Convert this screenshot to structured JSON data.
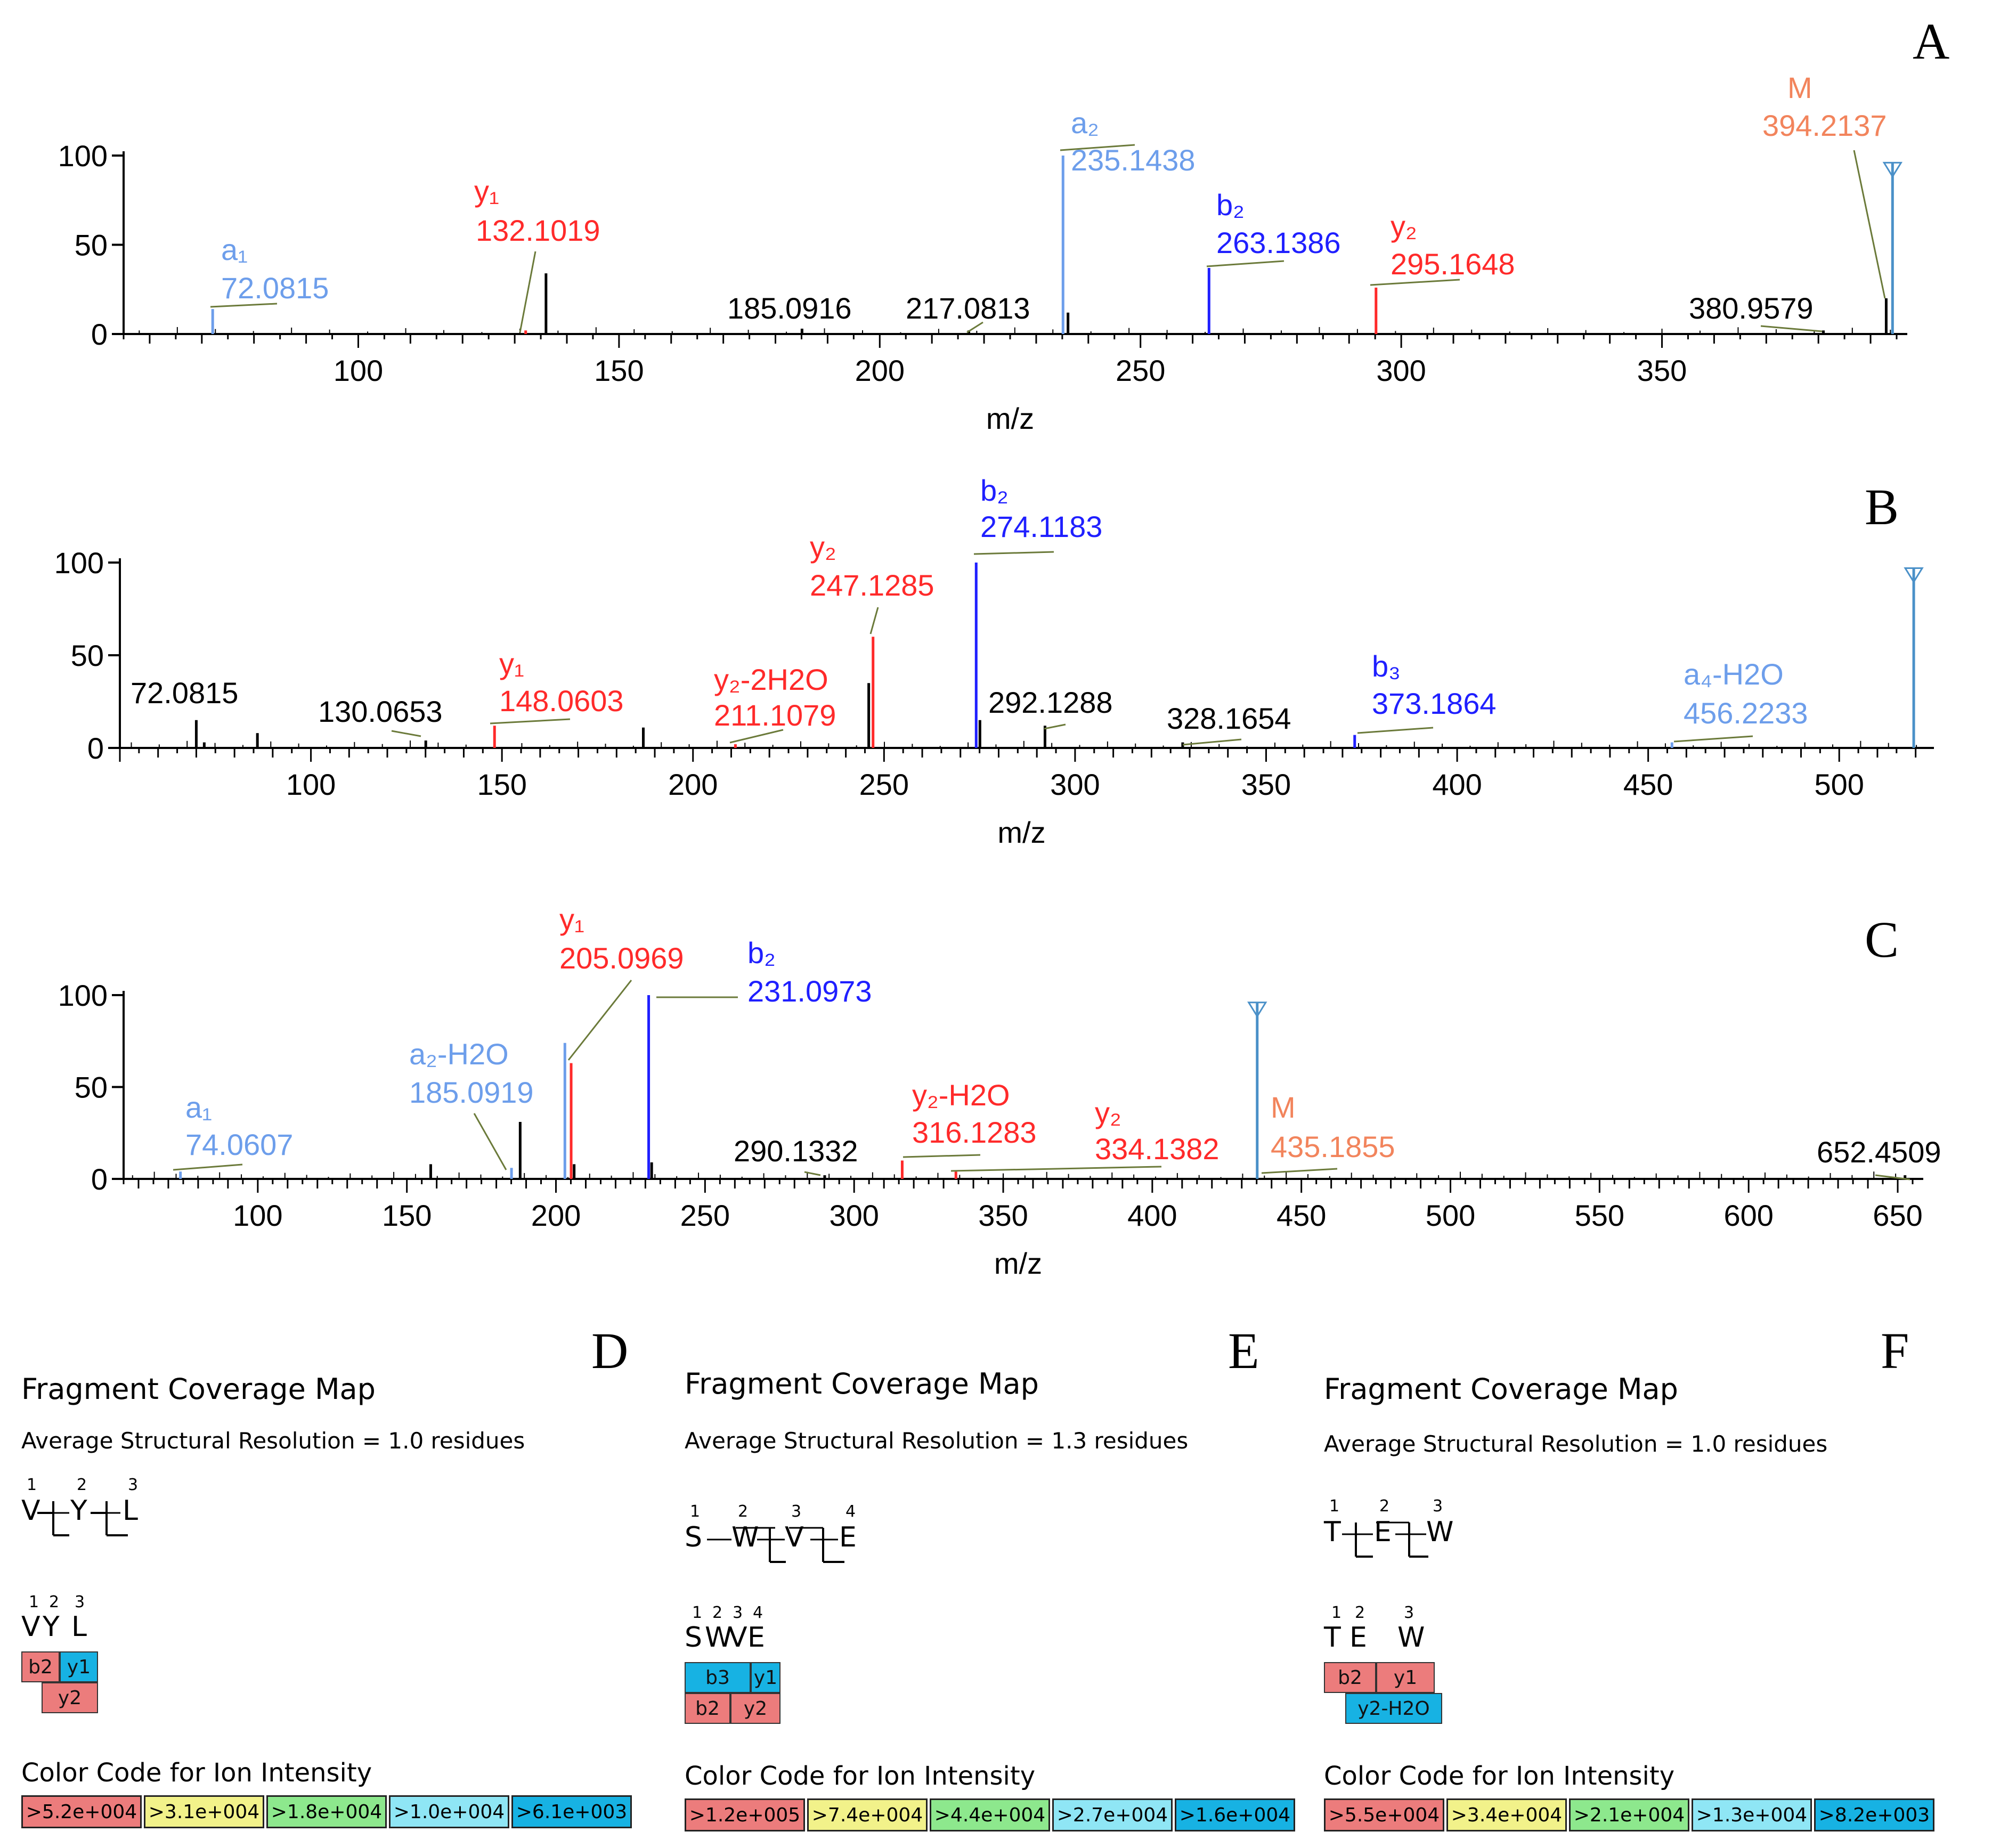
{
  "chart_data": [
    {
      "type": "bar",
      "panel": "A",
      "xlabel": "m/z",
      "xlim": [
        55,
        395
      ],
      "ylim": [
        0,
        100
      ],
      "xticks": [
        100,
        150,
        200,
        250,
        300,
        350
      ],
      "yticks": [
        0,
        50,
        100
      ],
      "peaks": [
        {
          "mz": 72.0815,
          "intensity": 14,
          "color": "#6d9eeb",
          "ion": "a₁",
          "label": "72.0815"
        },
        {
          "mz": 132.1019,
          "intensity": 2,
          "color": "#ff2a2a",
          "ion": "y₁",
          "label": "132.1019"
        },
        {
          "mz": 136.0,
          "intensity": 34,
          "color": "#000000"
        },
        {
          "mz": 185.0916,
          "intensity": 3,
          "color": "#000000",
          "label": "185.0916"
        },
        {
          "mz": 217.0813,
          "intensity": 2,
          "color": "#000000",
          "label": "217.0813"
        },
        {
          "mz": 235.1438,
          "intensity": 100,
          "color": "#6d9eeb",
          "ion": "a₂",
          "label": "235.1438"
        },
        {
          "mz": 236.1,
          "intensity": 12,
          "color": "#000000"
        },
        {
          "mz": 263.1386,
          "intensity": 37,
          "color": "#1f1fff",
          "ion": "b₂",
          "label": "263.1386"
        },
        {
          "mz": 295.1648,
          "intensity": 26,
          "color": "#ff2a2a",
          "ion": "y₂",
          "label": "295.1648"
        },
        {
          "mz": 380.9579,
          "intensity": 2,
          "color": "#000000",
          "label": "380.9579"
        },
        {
          "mz": 393.0,
          "intensity": 20,
          "color": "#000000"
        },
        {
          "mz": 394.2137,
          "intensity": 96,
          "color": "#4a90c8",
          "ion": "M",
          "label": "394.2137",
          "precursor": true
        }
      ]
    },
    {
      "type": "bar",
      "panel": "B",
      "xlabel": "m/z",
      "xlim": [
        50,
        522
      ],
      "ylim": [
        0,
        100
      ],
      "xticks": [
        100,
        150,
        200,
        250,
        300,
        350,
        400,
        450,
        500
      ],
      "yticks": [
        0,
        50,
        100
      ],
      "peaks": [
        {
          "mz": 70.0,
          "intensity": 15,
          "color": "#000000"
        },
        {
          "mz": 72.0815,
          "intensity": 3,
          "color": "#000000",
          "label": "72.0815"
        },
        {
          "mz": 86.0,
          "intensity": 8,
          "color": "#000000"
        },
        {
          "mz": 130.0653,
          "intensity": 4,
          "color": "#000000",
          "label": "130.0653"
        },
        {
          "mz": 148.0603,
          "intensity": 12,
          "color": "#ff2a2a",
          "ion": "y₁",
          "label": "148.0603"
        },
        {
          "mz": 187.0,
          "intensity": 11,
          "color": "#000000"
        },
        {
          "mz": 211.1079,
          "intensity": 2,
          "color": "#ff2a2a",
          "ion": "y₂-2H2O",
          "label": "211.1079"
        },
        {
          "mz": 246.0,
          "intensity": 35,
          "color": "#000000"
        },
        {
          "mz": 247.1285,
          "intensity": 60,
          "color": "#ff2a2a",
          "ion": "y₂",
          "label": "247.1285"
        },
        {
          "mz": 274.1183,
          "intensity": 100,
          "color": "#1f1fff",
          "ion": "b₂",
          "label": "274.1183"
        },
        {
          "mz": 275.1,
          "intensity": 15,
          "color": "#000000"
        },
        {
          "mz": 292.1288,
          "intensity": 12,
          "color": "#000000",
          "label": "292.1288"
        },
        {
          "mz": 328.1654,
          "intensity": 3,
          "color": "#000000",
          "label": "328.1654"
        },
        {
          "mz": 373.1864,
          "intensity": 7,
          "color": "#1f1fff",
          "ion": "b₃",
          "label": "373.1864"
        },
        {
          "mz": 456.2233,
          "intensity": 3,
          "color": "#6d9eeb",
          "ion": "a₄-H2O",
          "label": "456.2233"
        },
        {
          "mz": 519.5,
          "intensity": 97,
          "color": "#4a90c8",
          "precursor": true
        }
      ]
    },
    {
      "type": "bar",
      "panel": "C",
      "xlabel": "m/z",
      "xlim": [
        55,
        655
      ],
      "ylim": [
        0,
        100
      ],
      "xticks": [
        100,
        150,
        200,
        250,
        300,
        350,
        400,
        450,
        500,
        550,
        600,
        650
      ],
      "yticks": [
        0,
        50,
        100
      ],
      "peaks": [
        {
          "mz": 74.0607,
          "intensity": 4,
          "color": "#6d9eeb",
          "ion": "a₁",
          "label": "74.0607"
        },
        {
          "mz": 158.0,
          "intensity": 8,
          "color": "#000000"
        },
        {
          "mz": 185.0919,
          "intensity": 6,
          "color": "#6d9eeb",
          "ion": "a₂-H2O",
          "label": "185.0919"
        },
        {
          "mz": 188.0,
          "intensity": 31,
          "color": "#000000"
        },
        {
          "mz": 203.0,
          "intensity": 74,
          "color": "#6d9eeb"
        },
        {
          "mz": 205.0969,
          "intensity": 63,
          "color": "#ff2a2a",
          "ion": "y₁",
          "label": "205.0969"
        },
        {
          "mz": 206.1,
          "intensity": 8,
          "color": "#000000"
        },
        {
          "mz": 231.0973,
          "intensity": 100,
          "color": "#1f1fff",
          "ion": "b₂",
          "label": "231.0973"
        },
        {
          "mz": 232.1,
          "intensity": 9,
          "color": "#000000"
        },
        {
          "mz": 290.1332,
          "intensity": 2,
          "color": "#000000",
          "label": "290.1332"
        },
        {
          "mz": 316.1283,
          "intensity": 10,
          "color": "#ff2a2a",
          "ion": "y₂-H2O",
          "label": "316.1283"
        },
        {
          "mz": 334.1382,
          "intensity": 4,
          "color": "#ff2a2a",
          "ion": "y₂",
          "label": "334.1382"
        },
        {
          "mz": 435.1855,
          "intensity": 96,
          "color": "#4a90c8",
          "ion": "M",
          "label": "435.1855",
          "precursor": true
        },
        {
          "mz": 652.4509,
          "intensity": 2,
          "color": "#000000",
          "label": "652.4509"
        }
      ]
    }
  ],
  "coverage": [
    {
      "letter": "D",
      "title": "Fragment Coverage Map",
      "resolution": "Average Structural Resolution = 1.0 residues",
      "residues": [
        "V",
        "Y",
        "L"
      ],
      "numbers": [
        "1",
        "2",
        "3"
      ],
      "boxes_row1": [
        {
          "label": "b2",
          "color": "#ec7c7c"
        },
        {
          "label": "y1",
          "color": "#17b2e3"
        }
      ],
      "boxes_row2": [
        {
          "label": "y2",
          "color": "#ec7c7c"
        }
      ],
      "color_code_title": "Color Code for Ion Intensity",
      "legend": [
        ">5.2e+004",
        ">3.1e+004",
        ">1.8e+004",
        ">1.0e+004",
        ">6.1e+003"
      ]
    },
    {
      "letter": "E",
      "title": "Fragment Coverage Map",
      "resolution": "Average Structural Resolution = 1.3 residues",
      "residues": [
        "S",
        "W",
        "V",
        "E"
      ],
      "numbers": [
        "1",
        "2",
        "3",
        "4"
      ],
      "boxes_row1": [
        {
          "label": "b3",
          "color": "#17b2e3"
        },
        {
          "label": "y1",
          "color": "#17b2e3"
        }
      ],
      "boxes_row2": [
        {
          "label": "b2",
          "color": "#ec7c7c"
        },
        {
          "label": "y2",
          "color": "#ec7c7c"
        }
      ],
      "color_code_title": "Color Code for Ion Intensity",
      "legend": [
        ">1.2e+005",
        ">7.4e+004",
        ">4.4e+004",
        ">2.7e+004",
        ">1.6e+004"
      ]
    },
    {
      "letter": "F",
      "title": "Fragment Coverage Map",
      "resolution": "Average Structural Resolution = 1.0 residues",
      "residues": [
        "T",
        "E",
        "W"
      ],
      "numbers": [
        "1",
        "2",
        "3"
      ],
      "boxes_row1": [
        {
          "label": "b2",
          "color": "#ec7c7c"
        },
        {
          "label": "y1",
          "color": "#ec7c7c"
        }
      ],
      "boxes_row2": [
        {
          "label": "y2-H2O",
          "color": "#17b2e3"
        }
      ],
      "color_code_title": "Color Code for Ion Intensity",
      "legend": [
        ">5.5e+004",
        ">3.4e+004",
        ">2.1e+004",
        ">1.3e+004",
        ">8.2e+003"
      ]
    }
  ],
  "legend_colors": [
    "#ec7c7c",
    "#f2f28a",
    "#8de88d",
    "#8fe6f5",
    "#17b2e3"
  ]
}
